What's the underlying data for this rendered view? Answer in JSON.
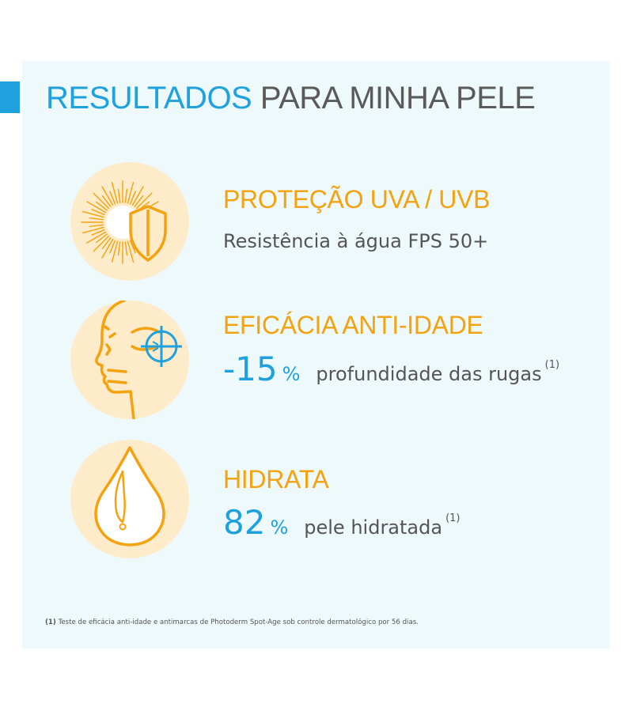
{
  "title": {
    "strong": "RESULTADOS",
    "light": "PARA MINHA PELE"
  },
  "items": [
    {
      "icon": "sun-shield-icon",
      "heading": "PROTEÇÃO UVA / UVB",
      "subtitle": "Resistência à água FPS 50+"
    },
    {
      "icon": "face-target-icon",
      "heading": "EFICÁCIA ANTI-IDADE",
      "value": "-15",
      "unit": "%",
      "description": "profundidade das rugas",
      "note": "(1)"
    },
    {
      "icon": "water-drop-icon",
      "heading": "HIDRATA",
      "value": "82",
      "unit": "%",
      "description": "pele hidratada",
      "note": "(1)"
    }
  ],
  "footnote": {
    "mark": "(1)",
    "text": "Teste de eficácia anti-idade e antimarcas de Photoderm Spot-Age sob controle dermatológico por 56 dias."
  },
  "colors": {
    "accent_blue": "#1ea1dd",
    "accent_orange": "#f4a20f",
    "panel_bg": "#eef9fb",
    "icon_circle": "#fdebc9"
  }
}
